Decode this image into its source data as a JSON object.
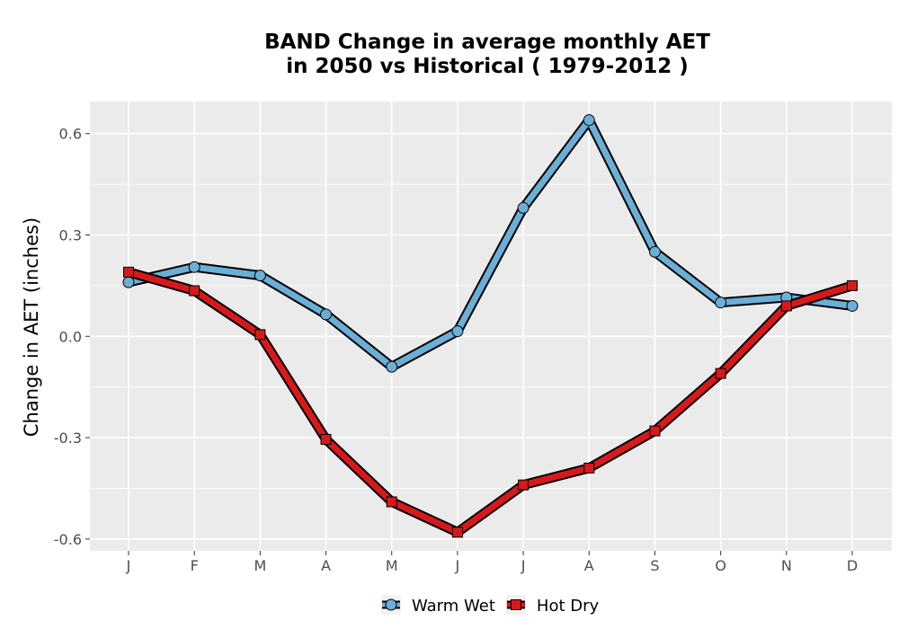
{
  "chart_data": {
    "type": "line",
    "title_line1": "BAND  Change in average monthly AET",
    "title_line2": "in 2050 vs Historical ( 1979-2012 )",
    "xlabel": "",
    "ylabel": "Change in AET (inches)",
    "categories": [
      "J",
      "F",
      "M",
      "A",
      "M",
      "J",
      "J",
      "A",
      "S",
      "O",
      "N",
      "D"
    ],
    "yticks": [
      0.6,
      0.3,
      0.0,
      -0.3,
      -0.6
    ],
    "ytick_labels": [
      "0.6",
      "0.3",
      "0.0",
      "-0.3",
      "-0.6"
    ],
    "ylim": [
      -0.635,
      0.695
    ],
    "grid": true,
    "legend_position": "bottom",
    "series": [
      {
        "name": "Warm Wet",
        "color": "#6baed6",
        "marker": "circle",
        "values": [
          0.16,
          0.205,
          0.18,
          0.065,
          -0.09,
          0.015,
          0.38,
          0.64,
          0.25,
          0.1,
          0.115,
          0.09
        ]
      },
      {
        "name": "Hot Dry",
        "color": "#d7191c",
        "marker": "square",
        "values": [
          0.19,
          0.135,
          0.005,
          -0.305,
          -0.49,
          -0.58,
          -0.44,
          -0.39,
          -0.28,
          -0.11,
          0.09,
          0.15
        ]
      }
    ]
  }
}
